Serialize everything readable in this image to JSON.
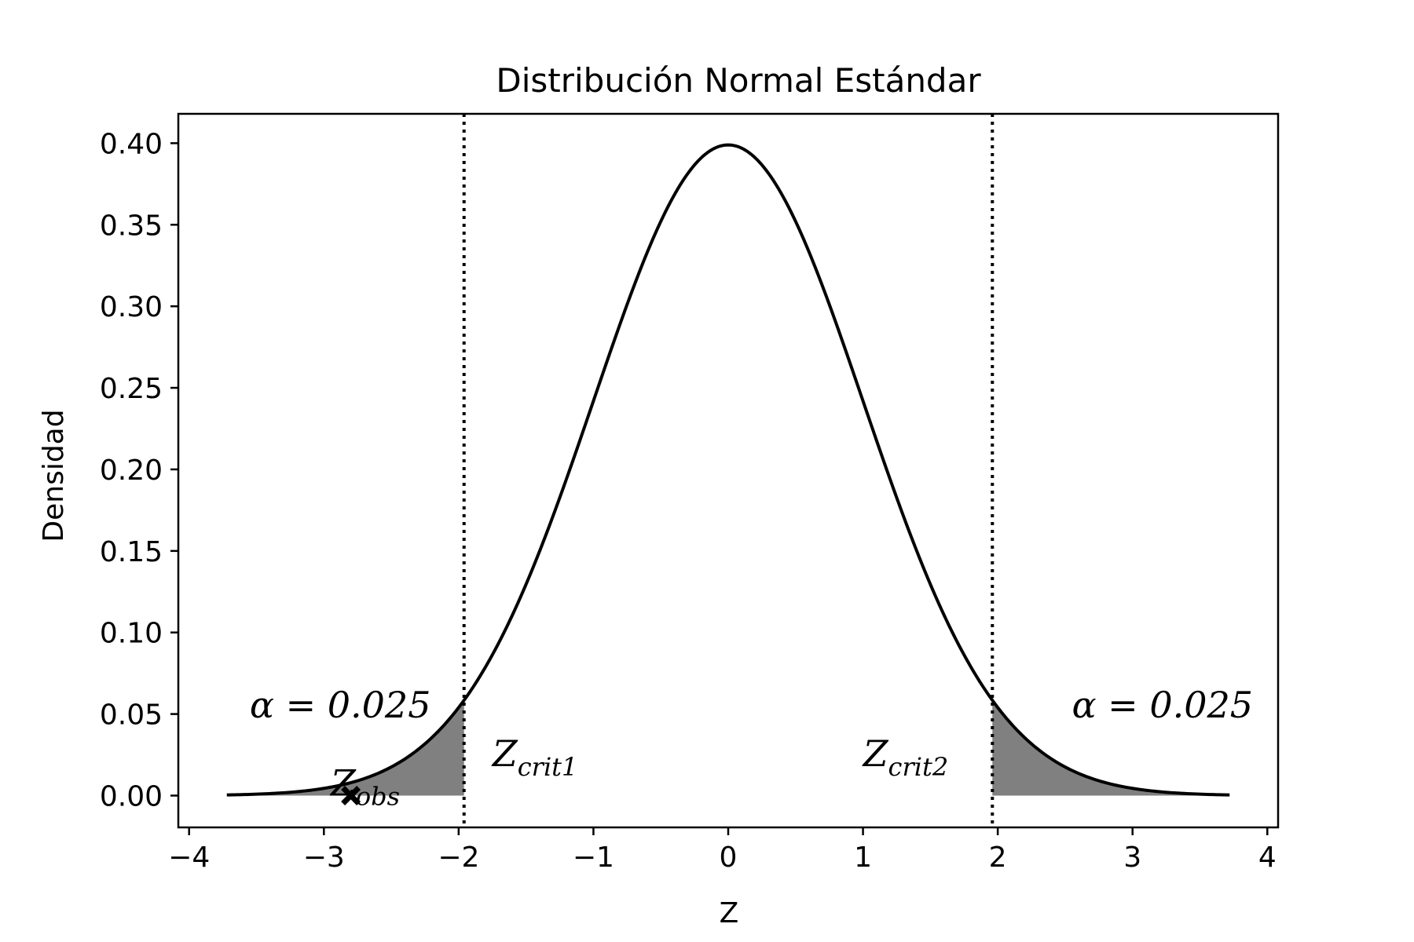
{
  "chart_data": {
    "type": "line",
    "title": "Distribución Normal Estándar",
    "xlabel": "Z",
    "ylabel": "Densidad",
    "xlim": [
      -4.08,
      4.08
    ],
    "ylim": [
      -0.0195,
      0.418
    ],
    "xticks": [
      -4,
      -3,
      -2,
      -1,
      0,
      1,
      2,
      3,
      4
    ],
    "xtick_labels": [
      "−4",
      "−3",
      "−2",
      "−1",
      "0",
      "1",
      "2",
      "3",
      "4"
    ],
    "yticks": [
      0.0,
      0.05,
      0.1,
      0.15,
      0.2,
      0.25,
      0.3,
      0.35,
      0.4
    ],
    "ytick_labels": [
      "0.00",
      "0.05",
      "0.10",
      "0.15",
      "0.20",
      "0.25",
      "0.30",
      "0.35",
      "0.40"
    ],
    "curve": {
      "function": "standard normal pdf",
      "x_range": [
        -3.72,
        3.72
      ],
      "color": "#000000"
    },
    "critical_values": [
      -1.96,
      1.96
    ],
    "rejection_regions": [
      {
        "from": -3.72,
        "to": -1.96,
        "color": "#808080"
      },
      {
        "from": 1.96,
        "to": 3.72,
        "color": "#808080"
      }
    ],
    "observed": {
      "z": -2.8,
      "y": 0.0,
      "marker": "X"
    },
    "annotations": {
      "alpha_left": {
        "x": -3.55,
        "y": 0.048,
        "main": "α = 0.025"
      },
      "alpha_right": {
        "x": 2.55,
        "y": 0.048,
        "main": "α = 0.025"
      },
      "zcrit1": {
        "x": -1.75,
        "y": 0.018,
        "main": "Z",
        "sub": "crit1"
      },
      "zcrit2": {
        "x": 1.0,
        "y": 0.018,
        "main": "Z",
        "sub": "crit2"
      },
      "zobs": {
        "x": -2.95,
        "y": 0.0,
        "main": "Z",
        "sub": "obs"
      }
    },
    "grid": false,
    "legend": false
  }
}
